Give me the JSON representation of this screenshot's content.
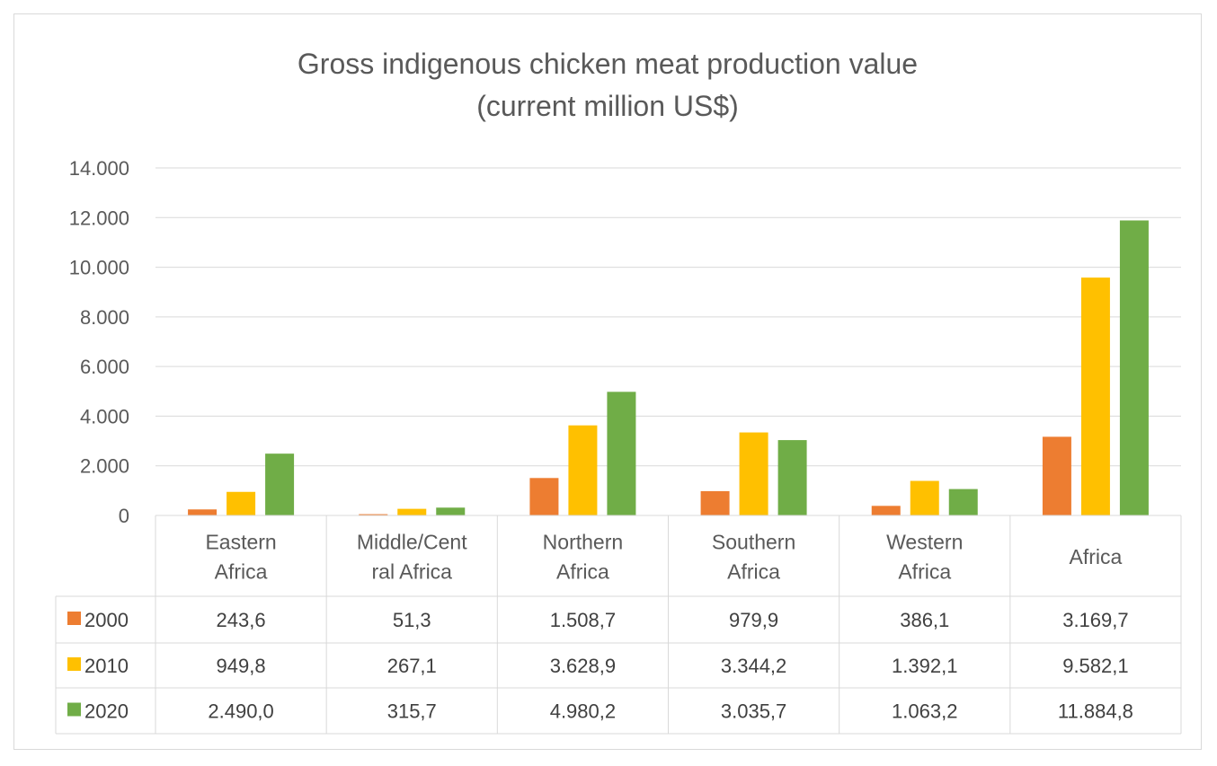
{
  "chart_data": {
    "type": "bar",
    "title": [
      "Gross indigenous chicken meat production value",
      "(current million US$)"
    ],
    "categories": [
      [
        "Eastern",
        "Africa"
      ],
      [
        "Middle/Cent",
        "ral Africa"
      ],
      [
        "Northern",
        "Africa"
      ],
      [
        "Southern",
        "Africa"
      ],
      [
        "Western",
        "Africa"
      ],
      [
        "Africa"
      ]
    ],
    "series": [
      {
        "name": "2000",
        "color": "#ed7d31",
        "values": [
          243.6,
          51.3,
          1508.7,
          979.9,
          386.1,
          3169.7
        ],
        "labels": [
          "243,6",
          "51,3",
          "1.508,7",
          "979,9",
          "386,1",
          "3.169,7"
        ]
      },
      {
        "name": "2010",
        "color": "#ffc000",
        "values": [
          949.8,
          267.1,
          3628.9,
          3344.2,
          1392.1,
          9582.1
        ],
        "labels": [
          "949,8",
          "267,1",
          "3.628,9",
          "3.344,2",
          "1.392,1",
          "9.582,1"
        ]
      },
      {
        "name": "2020",
        "color": "#70ad47",
        "values": [
          2490.0,
          315.7,
          4980.2,
          3035.7,
          1063.2,
          11884.8
        ],
        "labels": [
          "2.490,0",
          "315,7",
          "4.980,2",
          "3.035,7",
          "1.063,2",
          "11.884,8"
        ]
      }
    ],
    "ylim": [
      0,
      14000
    ],
    "yticks": [
      0,
      2000,
      4000,
      6000,
      8000,
      10000,
      12000,
      14000
    ],
    "ytick_labels": [
      "0",
      "2.000",
      "4.000",
      "6.000",
      "8.000",
      "10.000",
      "12.000",
      "14.000"
    ],
    "grid": true,
    "legend": "data-table"
  }
}
